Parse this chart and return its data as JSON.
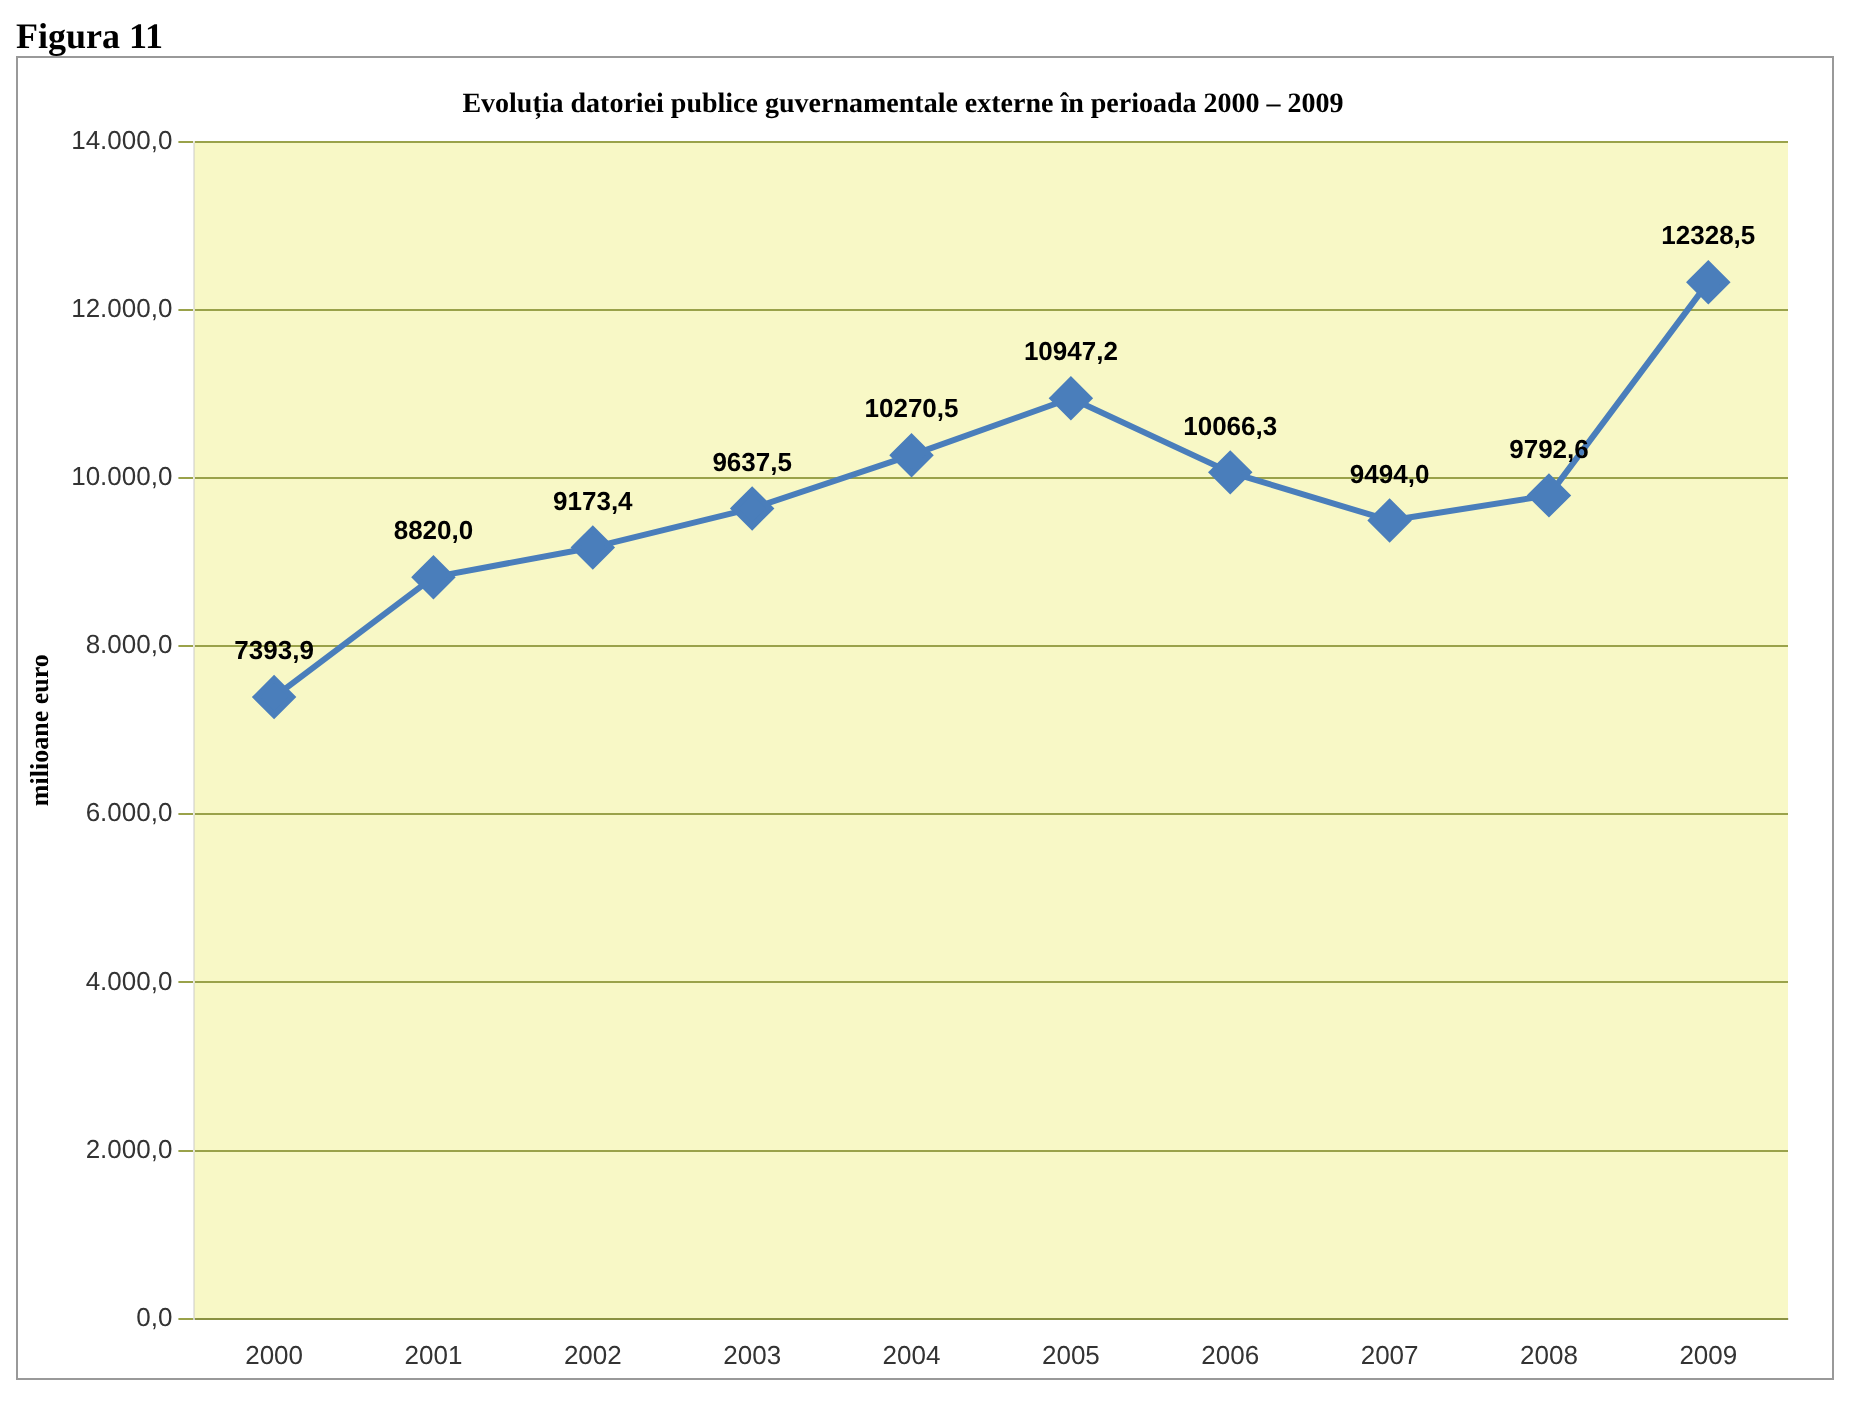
{
  "chart_data": {
    "type": "line",
    "title": "Evoluția datoriei publice guvernamentale externe în perioada 2000 – 2009",
    "ylabel": "milioane euro",
    "annotations": [
      "Figura 11"
    ],
    "categories": [
      "2000",
      "2001",
      "2002",
      "2003",
      "2004",
      "2005",
      "2006",
      "2007",
      "2008",
      "2009"
    ],
    "series": [
      {
        "color": "#4a7ebb",
        "values": [
          7393.9,
          8820.0,
          9173.4,
          9637.5,
          10270.5,
          10947.2,
          10066.3,
          9494.0,
          9792.6,
          12328.5
        ],
        "value_labels": [
          "7393,9",
          "8820,0",
          "9173,4",
          "9637,5",
          "10270,5",
          "10947,2",
          "10066,3",
          "9494,0",
          "9792,6",
          "12328,5"
        ]
      }
    ],
    "ylim": [
      0,
      14000
    ],
    "yticks": [
      {
        "value": 0,
        "label": "0,0"
      },
      {
        "value": 2000,
        "label": "2.000,0"
      },
      {
        "value": 4000,
        "label": "4.000,0"
      },
      {
        "value": 6000,
        "label": "6.000,0"
      },
      {
        "value": 8000,
        "label": "8.000,0"
      },
      {
        "value": 10000,
        "label": "10.000,0"
      },
      {
        "value": 12000,
        "label": "12.000,0"
      },
      {
        "value": 14000,
        "label": "14.000,0"
      }
    ],
    "grid": "y",
    "marker": "diamond",
    "line_style": "solid",
    "legend": false
  }
}
